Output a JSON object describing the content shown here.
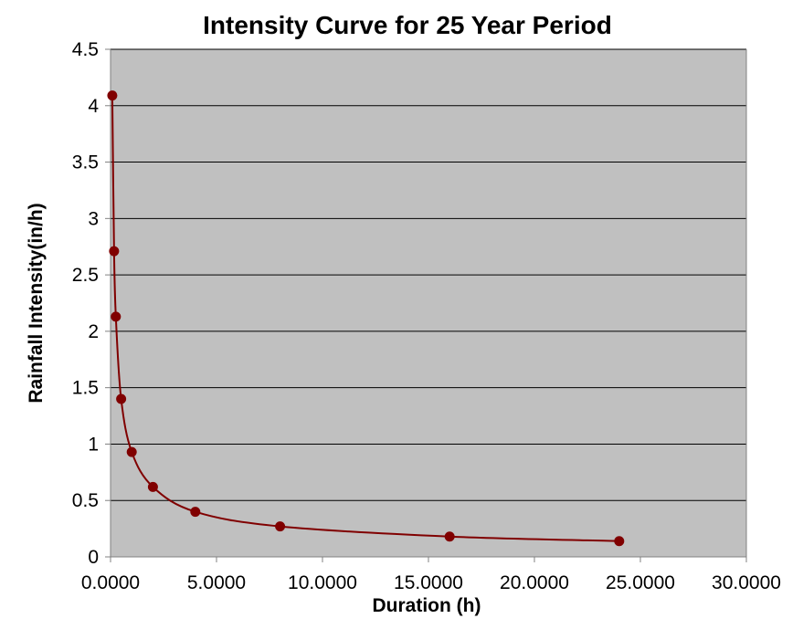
{
  "chart_data": {
    "type": "scatter",
    "title": "Intensity Curve for 25 Year Period",
    "xlabel": "Duration (h)",
    "ylabel": "Rainfall Intensity(in/h)",
    "xlim": [
      0,
      30
    ],
    "ylim": [
      0,
      4.5
    ],
    "x_ticks": [
      0,
      5,
      10,
      15,
      20,
      25,
      30
    ],
    "x_tick_labels": [
      "0.0000",
      "5.0000",
      "10.0000",
      "15.0000",
      "20.0000",
      "25.0000",
      "30.0000"
    ],
    "y_ticks": [
      0,
      0.5,
      1,
      1.5,
      2,
      2.5,
      3,
      3.5,
      4,
      4.5
    ],
    "y_tick_labels": [
      "0",
      "0.5",
      "1",
      "1.5",
      "2",
      "2.5",
      "3",
      "3.5",
      "4",
      "4.5"
    ],
    "grid": "horizontal",
    "smooth_line": true,
    "series": [
      {
        "x": [
          0.0833,
          0.1667,
          0.25,
          0.5,
          1,
          2,
          4,
          8,
          16,
          24
        ],
        "y": [
          4.09,
          2.71,
          2.13,
          1.4,
          0.93,
          0.62,
          0.4,
          0.27,
          0.18,
          0.14
        ],
        "color": "#800000"
      }
    ],
    "plot_background": "#c0c0c0",
    "gridline_color": "#000000"
  }
}
